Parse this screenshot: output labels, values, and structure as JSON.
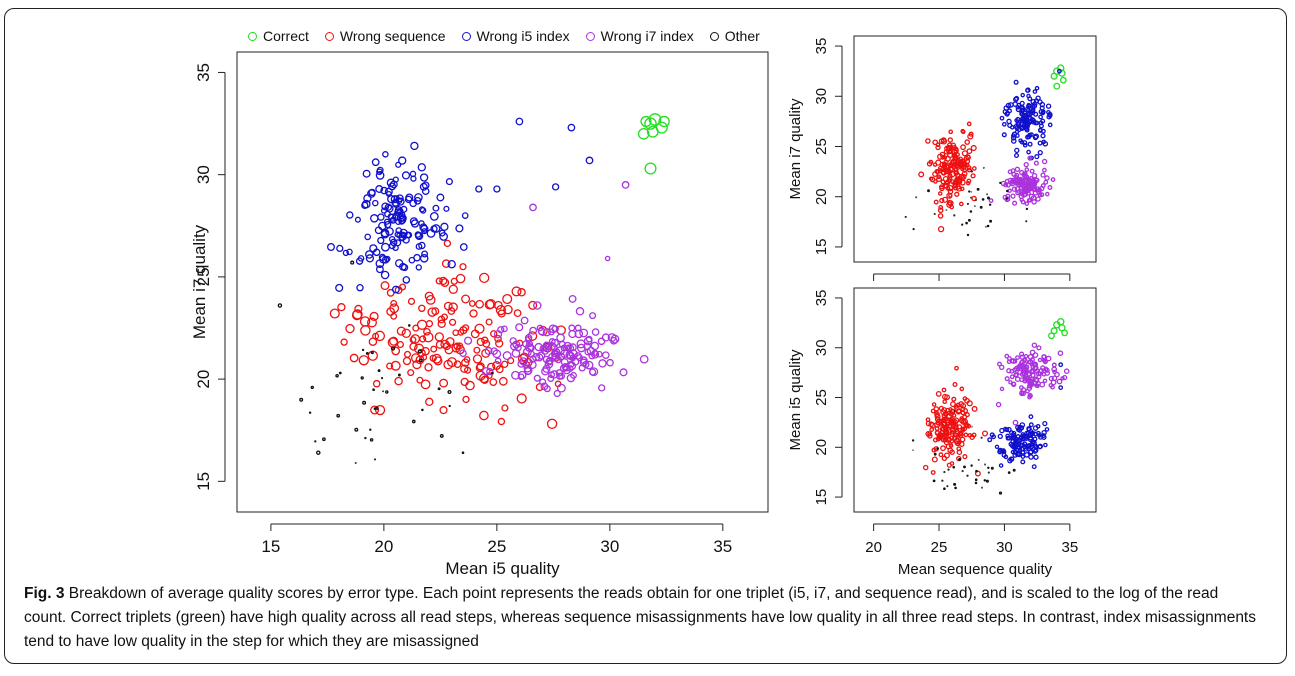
{
  "colors": {
    "correct": "#22dd22",
    "wrong_sequence": "#ee1111",
    "wrong_i5": "#1111cc",
    "wrong_i7": "#aa33dd",
    "other": "#111111"
  },
  "legend": [
    {
      "label": "Correct",
      "color": "#22dd22"
    },
    {
      "label": "Wrong sequence",
      "color": "#ee1111"
    },
    {
      "label": "Wrong i5 index",
      "color": "#1111cc"
    },
    {
      "label": "Wrong i7 index",
      "color": "#aa33dd"
    },
    {
      "label": "Other",
      "color": "#111111"
    }
  ],
  "caption": {
    "label": "Fig. 3",
    "text": "Breakdown of average quality scores by error type. Each point represents the reads obtain for one triplet (i5, i7, and sequence read), and is scaled to the log of the read count. Correct triplets (green) have high quality across all read steps, whereas sequence misassignments have low quality in all three read steps. In contrast, index misassignments tend to have low quality in the step for which they are misassigned"
  },
  "chart_data": [
    {
      "type": "scatter",
      "id": "main",
      "title": "",
      "xlabel": "Mean i5 quality",
      "ylabel": "Mean i7 quality",
      "xlim": [
        13.5,
        37
      ],
      "ylim": [
        13.5,
        36
      ],
      "xticks": [
        15,
        20,
        25,
        30,
        35
      ],
      "yticks": [
        15,
        20,
        25,
        30,
        35
      ],
      "clusters": [
        {
          "series": "Wrong sequence",
          "color": "#ee1111",
          "cx": 22.8,
          "cy": 22.0,
          "sx": 2.0,
          "sy": 1.6,
          "n": 170,
          "rmin": 2.5,
          "rmax": 4.3,
          "seed": 11
        },
        {
          "series": "Wrong i5 index",
          "color": "#1111cc",
          "cx": 20.6,
          "cy": 27.6,
          "sx": 1.0,
          "sy": 1.4,
          "n": 150,
          "rmin": 2.2,
          "rmax": 3.5,
          "seed": 23
        },
        {
          "series": "Wrong i7 index",
          "color": "#aa33dd",
          "cx": 27.6,
          "cy": 21.3,
          "sx": 1.4,
          "sy": 0.9,
          "n": 150,
          "rmin": 2.5,
          "rmax": 3.6,
          "seed": 37
        },
        {
          "series": "Other",
          "color": "#111111",
          "cx": 19.8,
          "cy": 19.0,
          "sx": 1.8,
          "sy": 1.6,
          "n": 38,
          "rmin": 0.3,
          "rmax": 1.4,
          "seed": 41
        }
      ],
      "points": [
        {
          "series": "Correct",
          "color": "#22dd22",
          "x": 31.8,
          "y": 32.5,
          "r": 5.2
        },
        {
          "series": "Correct",
          "color": "#22dd22",
          "x": 32.3,
          "y": 32.3,
          "r": 5.0
        },
        {
          "series": "Correct",
          "color": "#22dd22",
          "x": 31.5,
          "y": 32.0,
          "r": 4.8
        },
        {
          "series": "Correct",
          "color": "#22dd22",
          "x": 32.0,
          "y": 32.7,
          "r": 5.3
        },
        {
          "series": "Correct",
          "color": "#22dd22",
          "x": 31.9,
          "y": 32.1,
          "r": 4.9
        },
        {
          "series": "Correct",
          "color": "#22dd22",
          "x": 32.4,
          "y": 32.6,
          "r": 4.7
        },
        {
          "series": "Correct",
          "color": "#22dd22",
          "x": 31.6,
          "y": 32.6,
          "r": 4.6
        },
        {
          "series": "Correct",
          "color": "#22dd22",
          "x": 31.8,
          "y": 30.3,
          "r": 5.0
        },
        {
          "series": "Wrong i5 index",
          "color": "#1111cc",
          "x": 26.0,
          "y": 32.6,
          "r": 3.0
        },
        {
          "series": "Wrong i5 index",
          "color": "#1111cc",
          "x": 28.3,
          "y": 32.3,
          "r": 3.0
        },
        {
          "series": "Wrong i5 index",
          "color": "#1111cc",
          "x": 29.1,
          "y": 30.7,
          "r": 3.0
        },
        {
          "series": "Wrong i5 index",
          "color": "#1111cc",
          "x": 27.6,
          "y": 29.4,
          "r": 2.8
        },
        {
          "series": "Wrong i5 index",
          "color": "#1111cc",
          "x": 23.6,
          "y": 28.0,
          "r": 2.5
        },
        {
          "series": "Wrong i5 index",
          "color": "#1111cc",
          "x": 24.2,
          "y": 29.3,
          "r": 2.8
        },
        {
          "series": "Wrong i5 index",
          "color": "#1111cc",
          "x": 25.0,
          "y": 29.3,
          "r": 2.8
        },
        {
          "series": "Wrong i7 index",
          "color": "#aa33dd",
          "x": 30.7,
          "y": 29.5,
          "r": 3.0
        },
        {
          "series": "Wrong i7 index",
          "color": "#aa33dd",
          "x": 26.6,
          "y": 28.4,
          "r": 3.0
        },
        {
          "series": "Wrong i7 index",
          "color": "#aa33dd",
          "x": 29.9,
          "y": 25.9,
          "r": 2.0
        },
        {
          "series": "Other",
          "color": "#111111",
          "x": 15.4,
          "y": 23.6,
          "r": 1.5
        },
        {
          "series": "Other",
          "color": "#111111",
          "x": 17.1,
          "y": 16.4,
          "r": 1.5
        },
        {
          "series": "Other",
          "color": "#111111",
          "x": 18.6,
          "y": 25.7,
          "r": 1.3
        },
        {
          "series": "Other",
          "color": "#111111",
          "x": 23.5,
          "y": 16.4,
          "r": 0.6
        }
      ]
    },
    {
      "type": "scatter",
      "id": "top-right",
      "title": "",
      "xlabel": "",
      "ylabel": "Mean i7 quality",
      "xlim": [
        18.5,
        37
      ],
      "ylim": [
        13.5,
        36
      ],
      "xticks": [
        20,
        25,
        30,
        35
      ],
      "yticks": [
        15,
        20,
        25,
        30,
        35
      ],
      "xtick_labels_visible": false,
      "clusters": [
        {
          "series": "Wrong sequence",
          "color": "#ee1111",
          "cx": 26.0,
          "cy": 22.6,
          "sx": 0.8,
          "sy": 1.7,
          "n": 170,
          "rmin": 2.5,
          "rmax": 4.0,
          "seed": 53
        },
        {
          "series": "Wrong i5 index",
          "color": "#1111cc",
          "cx": 31.6,
          "cy": 27.6,
          "sx": 1.0,
          "sy": 1.4,
          "n": 140,
          "rmin": 2.5,
          "rmax": 3.5,
          "seed": 61
        },
        {
          "series": "Wrong i7 index",
          "color": "#aa33dd",
          "cx": 31.7,
          "cy": 21.2,
          "sx": 0.9,
          "sy": 0.9,
          "n": 130,
          "rmin": 2.5,
          "rmax": 3.5,
          "seed": 71
        },
        {
          "series": "Other",
          "color": "#111111",
          "cx": 27.2,
          "cy": 19.0,
          "sx": 2.2,
          "sy": 1.8,
          "n": 34,
          "rmin": 0.3,
          "rmax": 1.4,
          "seed": 83
        }
      ],
      "points": [
        {
          "series": "Correct",
          "color": "#22dd22",
          "x": 34.0,
          "y": 32.5,
          "r": 4.9
        },
        {
          "series": "Correct",
          "color": "#22dd22",
          "x": 34.4,
          "y": 32.3,
          "r": 4.8
        },
        {
          "series": "Correct",
          "color": "#22dd22",
          "x": 33.8,
          "y": 32.0,
          "r": 4.6
        },
        {
          "series": "Correct",
          "color": "#22dd22",
          "x": 34.3,
          "y": 32.8,
          "r": 5.0
        },
        {
          "series": "Correct",
          "color": "#22dd22",
          "x": 34.0,
          "y": 31.0,
          "r": 4.5
        },
        {
          "series": "Correct",
          "color": "#22dd22",
          "x": 34.5,
          "y": 31.6,
          "r": 4.4
        },
        {
          "series": "Wrong i5 index",
          "color": "#1111cc",
          "x": 34.2,
          "y": 32.5,
          "r": 2.8
        },
        {
          "series": "Wrong i5 index",
          "color": "#1111cc",
          "x": 32.5,
          "y": 30.8,
          "r": 2.6
        }
      ]
    },
    {
      "type": "scatter",
      "id": "bottom-right",
      "title": "",
      "xlabel": "Mean sequence quality",
      "ylabel": "Mean i5 quality",
      "xlim": [
        18.5,
        37
      ],
      "ylim": [
        13.5,
        36
      ],
      "xticks": [
        20,
        25,
        30,
        35
      ],
      "yticks": [
        15,
        20,
        25,
        30,
        35
      ],
      "xtick_labels_visible": true,
      "clusters": [
        {
          "series": "Wrong sequence",
          "color": "#ee1111",
          "cx": 25.8,
          "cy": 22.0,
          "sx": 0.8,
          "sy": 1.8,
          "n": 170,
          "rmin": 2.5,
          "rmax": 4.0,
          "seed": 97
        },
        {
          "series": "Wrong i5 index",
          "color": "#1111cc",
          "cx": 31.5,
          "cy": 20.5,
          "sx": 0.9,
          "sy": 1.0,
          "n": 130,
          "rmin": 2.5,
          "rmax": 3.5,
          "seed": 101
        },
        {
          "series": "Wrong i7 index",
          "color": "#aa33dd",
          "cx": 31.8,
          "cy": 27.7,
          "sx": 1.0,
          "sy": 1.3,
          "n": 140,
          "rmin": 2.5,
          "rmax": 3.6,
          "seed": 113
        },
        {
          "series": "Other",
          "color": "#111111",
          "cx": 27.0,
          "cy": 18.2,
          "sx": 2.0,
          "sy": 1.5,
          "n": 34,
          "rmin": 0.3,
          "rmax": 1.4,
          "seed": 127
        }
      ],
      "points": [
        {
          "series": "Correct",
          "color": "#22dd22",
          "x": 34.0,
          "y": 32.3,
          "r": 4.9
        },
        {
          "series": "Correct",
          "color": "#22dd22",
          "x": 34.4,
          "y": 32.0,
          "r": 4.8
        },
        {
          "series": "Correct",
          "color": "#22dd22",
          "x": 33.8,
          "y": 31.7,
          "r": 4.6
        },
        {
          "series": "Correct",
          "color": "#22dd22",
          "x": 34.3,
          "y": 32.6,
          "r": 5.0
        },
        {
          "series": "Correct",
          "color": "#22dd22",
          "x": 33.6,
          "y": 31.2,
          "r": 4.4
        },
        {
          "series": "Correct",
          "color": "#22dd22",
          "x": 34.6,
          "y": 31.5,
          "r": 4.4
        },
        {
          "series": "Wrong i5 index",
          "color": "#1111cc",
          "x": 34.3,
          "y": 26.0,
          "r": 2.8
        },
        {
          "series": "Wrong i5 index",
          "color": "#1111cc",
          "x": 34.3,
          "y": 28.3,
          "r": 2.8
        },
        {
          "series": "Other",
          "color": "#111111",
          "x": 29.7,
          "y": 15.4,
          "r": 1.5
        }
      ]
    }
  ]
}
